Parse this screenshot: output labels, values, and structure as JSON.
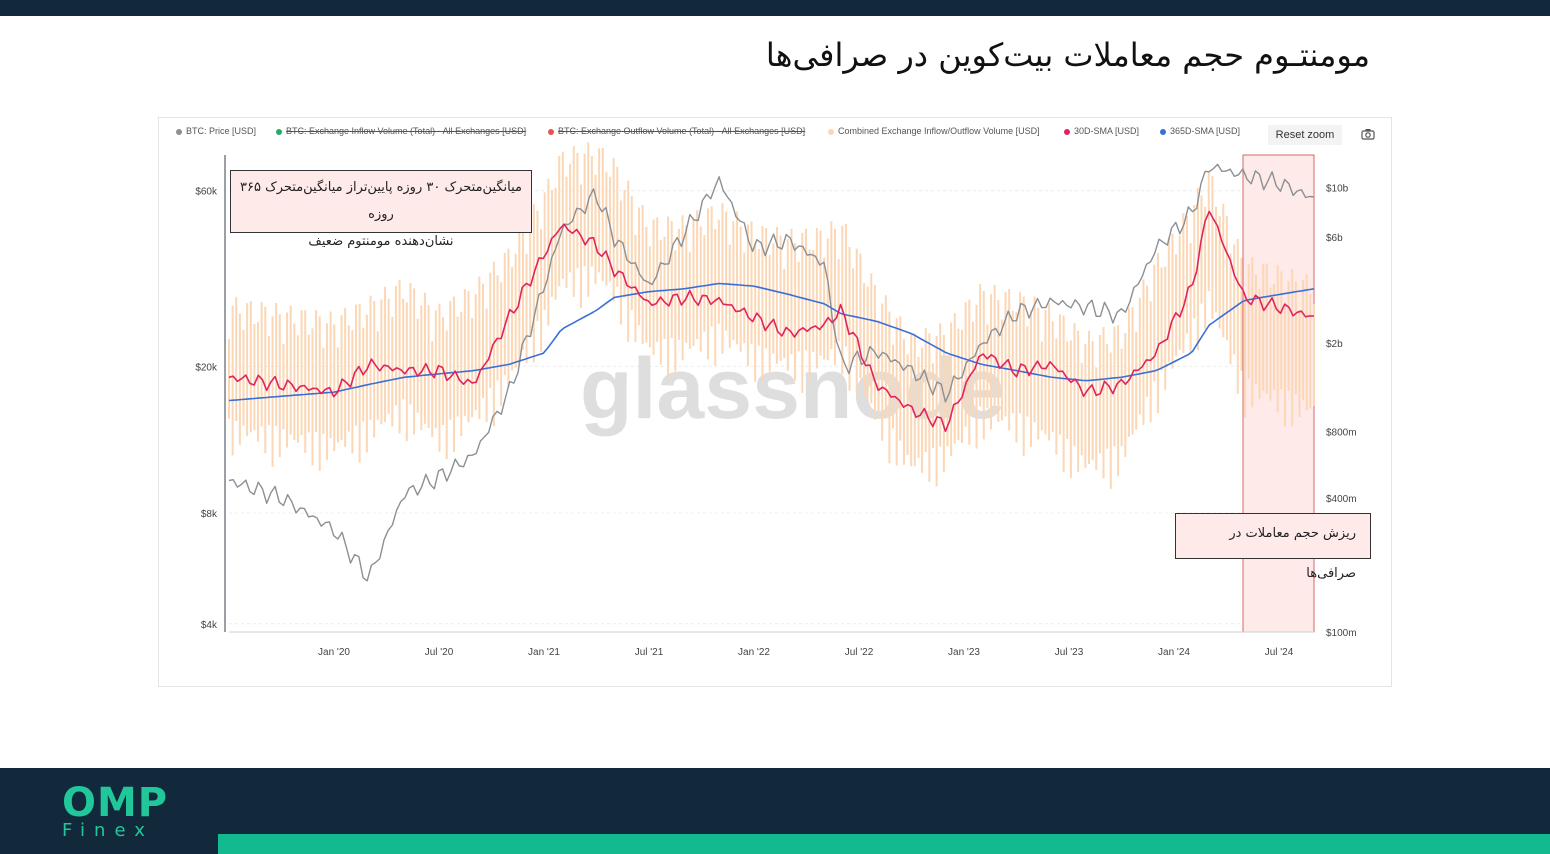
{
  "page": {
    "title": "مومنتـوم حجم معاملات بیت‌کوین در صرافی‌ها",
    "logo_main": "OMP",
    "logo_sub": "Finex"
  },
  "toolbar": {
    "reset_zoom_label": "Reset zoom",
    "camera_icon": "camera-icon"
  },
  "legend": {
    "items": [
      {
        "label": "BTC: Price [USD]",
        "color": "#8c8f93",
        "active": true
      },
      {
        "label": "BTC: Exchange Inflow Volume (Total) - All Exchanges [USD]",
        "color": "#2aa86b",
        "active": false
      },
      {
        "label": "BTC: Exchange Outflow Volume (Total) - All Exchanges [USD]",
        "color": "#e8534f",
        "active": false
      },
      {
        "label": "Combined Exchange Inflow/Outflow Volume [USD]",
        "color": "#fbd7b5",
        "active": true
      },
      {
        "label": "30D-SMA [USD]",
        "color": "#e0245e",
        "active": true
      },
      {
        "label": "365D-SMA [USD]",
        "color": "#3a6fd8",
        "active": true
      }
    ]
  },
  "annotations": {
    "weak_momentum_line1": "میانگین‌متحرک ۳۰ روزه پایین‌تراز میانگین‌متحرک ۳۶۵ روزه",
    "weak_momentum_line2": "نشان‌دهنده مومنتوم ضعیف",
    "volume_drop": "ریزش حجم معاملات در صرافی‌ها"
  },
  "watermark": "glassnode",
  "chart_data": {
    "type": "line",
    "x_tick_labels": [
      "Jan '20",
      "Jul '20",
      "Jan '21",
      "Jul '21",
      "Jan '22",
      "Jul '22",
      "Jan '23",
      "Jul '23",
      "Jan '24",
      "Jul '24"
    ],
    "x_range": [
      "2019-07",
      "2024-09"
    ],
    "y_left": {
      "scale": "log",
      "tick_labels": [
        "$4k",
        "$8k",
        "$20k",
        "$60k"
      ],
      "tick_values": [
        4000,
        8000,
        20000,
        60000
      ],
      "range": [
        3800,
        75000
      ]
    },
    "y_right": {
      "scale": "log",
      "tick_labels": [
        "$100m",
        "$400m",
        "$800m",
        "$2b",
        "$6b",
        "$10b"
      ],
      "tick_values": [
        100000000,
        400000000,
        800000000,
        2000000000,
        6000000000,
        10000000000
      ]
    },
    "grid": true,
    "legend_position": "top",
    "highlight_range": {
      "from": "2024-04",
      "to": "2024-09"
    },
    "x": [
      "2019-07",
      "2019-10",
      "2020-01",
      "2020-03",
      "2020-05",
      "2020-07",
      "2020-09",
      "2020-11",
      "2021-01",
      "2021-02",
      "2021-04",
      "2021-05",
      "2021-07",
      "2021-09",
      "2021-11",
      "2022-01",
      "2022-03",
      "2022-05",
      "2022-06",
      "2022-08",
      "2022-10",
      "2022-12",
      "2023-02",
      "2023-04",
      "2023-06",
      "2023-08",
      "2023-10",
      "2023-12",
      "2024-02",
      "2024-03",
      "2024-05",
      "2024-07",
      "2024-09"
    ],
    "series": [
      {
        "name": "BTC: Price [USD]",
        "axis": "left",
        "values": [
          9800,
          8800,
          7200,
          5300,
          9000,
          10000,
          11500,
          17000,
          33000,
          47000,
          59000,
          45000,
          33000,
          46000,
          64000,
          42000,
          44000,
          38000,
          20000,
          22000,
          19500,
          16800,
          23000,
          28000,
          30000,
          29000,
          27500,
          42000,
          52000,
          70000,
          66000,
          63000,
          57000
        ]
      },
      {
        "name": "Combined Exchange Inflow/Outflow Volume [USD]",
        "axis": "right",
        "values": [
          1300000000,
          1200000000,
          1100000000,
          1300000000,
          1600000000,
          1200000000,
          1500000000,
          2200000000,
          4000000000,
          6000000000,
          6500000000,
          5500000000,
          3000000000,
          3000000000,
          3500000000,
          2800000000,
          2600000000,
          2700000000,
          3000000000,
          1500000000,
          900000000,
          1000000000,
          1500000000,
          1400000000,
          1200000000,
          900000000,
          1000000000,
          2000000000,
          3500000000,
          5000000000,
          2000000000,
          1800000000,
          1600000000
        ]
      },
      {
        "name": "30D-SMA [USD]",
        "axis": "right",
        "values": [
          1400000000,
          1300000000,
          1200000000,
          1600000000,
          1500000000,
          1500000000,
          1300000000,
          2600000000,
          5000000000,
          6800000000,
          5500000000,
          4300000000,
          3000000000,
          3200000000,
          3100000000,
          2600000000,
          2200000000,
          2400000000,
          2800000000,
          1300000000,
          1000000000,
          850000000,
          1800000000,
          1500000000,
          1600000000,
          1200000000,
          1300000000,
          1800000000,
          3500000000,
          8200000000,
          3200000000,
          2900000000,
          2600000000
        ]
      },
      {
        "name": "365D-SMA [USD]",
        "axis": "right",
        "values": [
          1100000000,
          1150000000,
          1200000000,
          1300000000,
          1400000000,
          1450000000,
          1500000000,
          1600000000,
          1800000000,
          2300000000,
          2800000000,
          3200000000,
          3400000000,
          3500000000,
          3700000000,
          3600000000,
          3300000000,
          3000000000,
          2700000000,
          2500000000,
          2200000000,
          1800000000,
          1600000000,
          1500000000,
          1400000000,
          1350000000,
          1400000000,
          1500000000,
          1800000000,
          2400000000,
          3100000000,
          3300000000,
          3500000000
        ]
      }
    ]
  }
}
